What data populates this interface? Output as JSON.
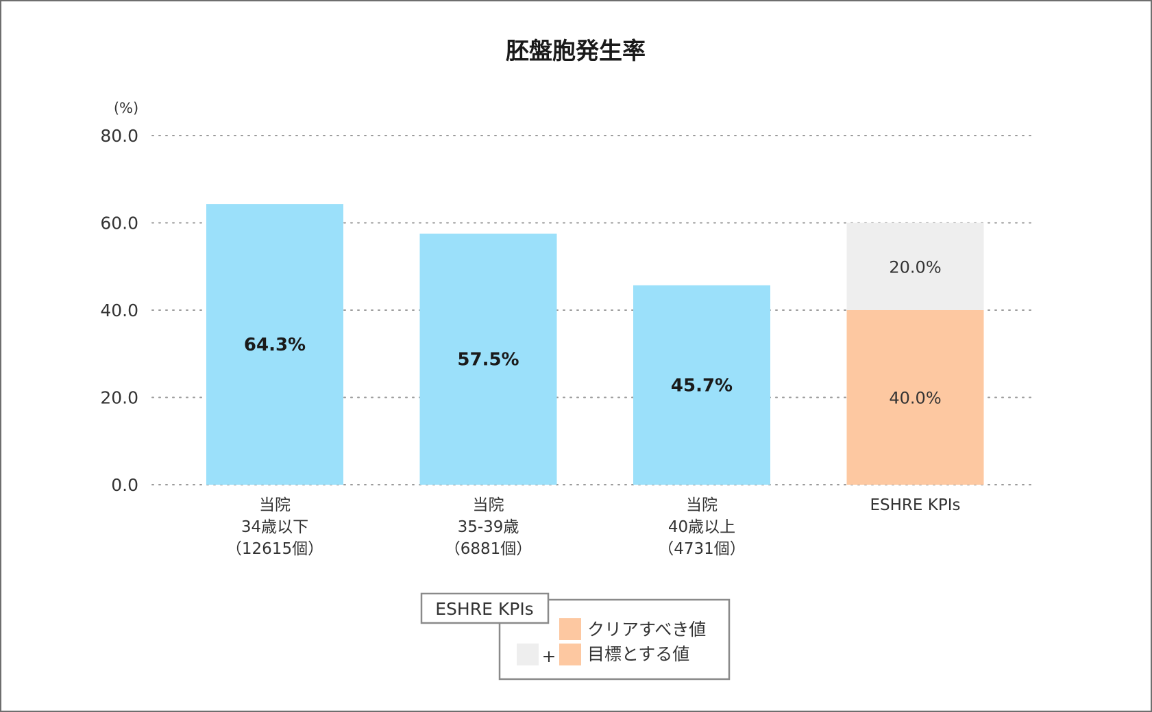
{
  "chart_data": {
    "type": "bar",
    "title": "胚盤胞発生率",
    "ylabel": "(%)",
    "ylim": [
      0,
      80
    ],
    "yticks": [
      "0.0",
      "20.0",
      "40.0",
      "60.0",
      "80.0"
    ],
    "grid": true,
    "categories": [
      [
        "当院",
        "34歳以下",
        "（12615個）"
      ],
      [
        "当院",
        "35-39歳",
        "（6881個）"
      ],
      [
        "当院",
        "40歳以上",
        "（4731個）"
      ],
      [
        "ESHRE KPIs"
      ]
    ],
    "series": [
      {
        "name": "当院",
        "values": [
          64.3,
          57.5,
          45.7,
          null
        ],
        "labels": [
          "64.3%",
          "57.5%",
          "45.7%",
          ""
        ],
        "color": "#9be0fa"
      },
      {
        "name": "クリアすべき値",
        "values": [
          null,
          null,
          null,
          40.0
        ],
        "labels": [
          "",
          "",
          "",
          "40.0%"
        ],
        "color": "#fdc8a1"
      },
      {
        "name": "目標とする値",
        "values": [
          null,
          null,
          null,
          20.0
        ],
        "labels": [
          "",
          "",
          "",
          "20.0%"
        ],
        "color": "#eeeeee"
      }
    ],
    "stacked": true,
    "legend": {
      "position": "bottom",
      "title": "ESHRE KPIs",
      "items": [
        {
          "label": "クリアすべき値",
          "colors": [
            "#fdc8a1"
          ]
        },
        {
          "label": "目標とする値",
          "colors": [
            "#eeeeee",
            "#fdc8a1"
          ],
          "joiner": "+"
        }
      ]
    }
  }
}
